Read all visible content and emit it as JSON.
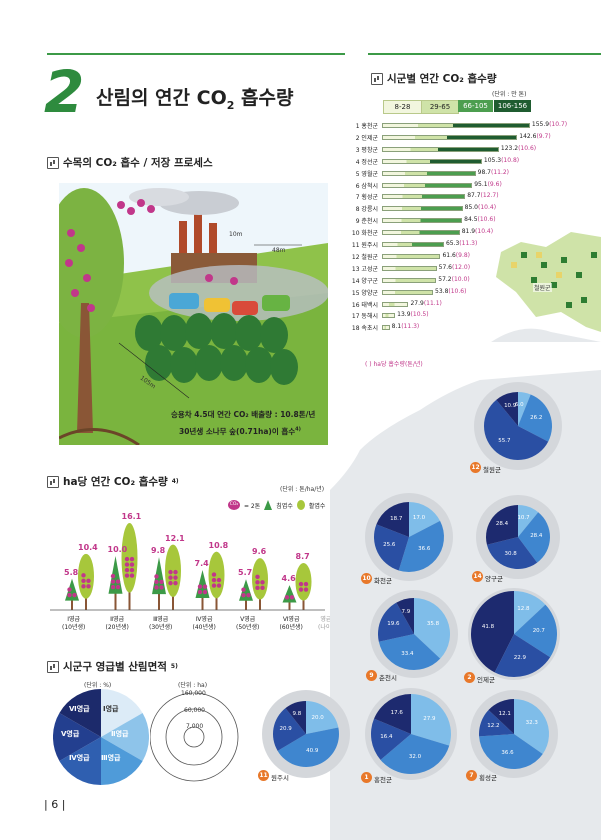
{
  "header": {
    "chapter_number": "2",
    "title": "산림의 연간 CO",
    "title_sub": "2",
    "title_tail": " 흡수량"
  },
  "process": {
    "title": "수목의 CO₂ 흡수 / 저장 프로세스",
    "tree_height": "10m",
    "area_width": "48m",
    "area_depth": "105m",
    "caption_1": "승용차 4.5대 연간 CO₂ 배출량 : 10.8톤/년",
    "caption_2": "30년생 소나무 숲(0.71ha)이 흡수",
    "caption_2_sup": "4)",
    "co2_mark": "CO₂"
  },
  "ha_chart": {
    "title": "ha당 연간 CO₂ 흡수량",
    "title_sup": "4)",
    "unit": "(단위 : 톤/ha/년)",
    "legend_co2": "= 2톤",
    "legend_conifer": "침엽수",
    "legend_broadleaf": "활엽수"
  },
  "chart_data": [
    {
      "type": "bar",
      "title": "ha당 연간 CO₂ 흡수량",
      "unit": "톤/ha/년",
      "categories": [
        "Ⅰ영급 (10년생)",
        "Ⅱ영급 (20년생)",
        "Ⅲ영급 (30년생)",
        "Ⅳ영급 (40년생)",
        "Ⅴ영급 (50년생)",
        "Ⅵ영급 (60년생)"
      ],
      "series": [
        {
          "name": "침엽수",
          "values": [
            5.8,
            10.0,
            9.8,
            7.4,
            5.7,
            4.6
          ]
        },
        {
          "name": "활엽수",
          "values": [
            10.4,
            16.1,
            12.1,
            10.8,
            9.6,
            8.7
          ]
        }
      ]
    },
    {
      "type": "bar",
      "title": "시군별 연간 CO₂ 흡수량",
      "unit": "만 톤",
      "categories": [
        "홍천군",
        "인제군",
        "평창군",
        "정선군",
        "영월군",
        "삼척시",
        "횡성군",
        "강릉시",
        "춘천시",
        "화천군",
        "원주시",
        "철원군",
        "고성군",
        "양구군",
        "양양군",
        "태백시",
        "동해시",
        "속초시"
      ],
      "values": [
        155.9,
        142.6,
        123.2,
        105.3,
        98.7,
        95.1,
        87.7,
        85.0,
        84.5,
        81.9,
        65.3,
        61.6,
        57.6,
        57.2,
        53.8,
        27.9,
        13.9,
        8.1
      ],
      "per_ha": [
        10.7,
        9.7,
        10.6,
        10.8,
        11.2,
        9.6,
        12.7,
        10.4,
        10.6,
        10.4,
        11.3,
        9.8,
        12.0,
        10.0,
        10.6,
        11.1,
        10.5,
        11.3
      ],
      "legend_bins": [
        "8-28",
        "29-65",
        "66-105",
        "106-156"
      ]
    },
    {
      "type": "pie",
      "title": "시군구 영급별 산림면적",
      "unit": "%",
      "pies": [
        {
          "name": "철원군",
          "number": "12",
          "values": [
            6.0,
            26.2,
            55.7,
            10.9
          ]
        },
        {
          "name": "화천군",
          "number": "10",
          "values": [
            17.0,
            36.6,
            25.6,
            18.7
          ]
        },
        {
          "name": "양구군",
          "number": "14",
          "values": [
            10.7,
            28.4,
            30.8,
            28.4
          ]
        },
        {
          "name": "춘천시",
          "number": "9",
          "values": [
            35.8,
            33.4,
            19.6,
            7.9
          ]
        },
        {
          "name": "인제군",
          "number": "2",
          "values": [
            12.8,
            20.7,
            22.9,
            41.8
          ]
        },
        {
          "name": "원주시",
          "number": "11",
          "values": [
            20.0,
            40.9,
            20.9,
            9.8
          ]
        },
        {
          "name": "홍천군",
          "number": "1",
          "values": [
            27.9,
            32.0,
            16.4,
            17.6
          ]
        },
        {
          "name": "횡성군",
          "number": "7",
          "values": [
            32.3,
            36.6,
            12.2,
            12.1
          ]
        }
      ]
    }
  ],
  "ha_bars": {
    "conifer": [
      "5.8",
      "10.0",
      "9.8",
      "7.4",
      "5.7",
      "4.6"
    ],
    "broadleaf": [
      "10.4",
      "16.1",
      "12.1",
      "10.8",
      "9.6",
      "8.7"
    ],
    "grades": [
      "Ⅰ영급",
      "Ⅱ영급",
      "Ⅲ영급",
      "Ⅳ영급",
      "Ⅴ영급",
      "Ⅵ영급"
    ],
    "ages": [
      "(10년생)",
      "(20년생)",
      "(30년생)",
      "(40년생)",
      "(50년생)",
      "(60년생)"
    ],
    "axis_label": "영급",
    "axis_sub": "(나이)"
  },
  "county_chart": {
    "title": "시군별 연간 CO₂ 흡수량",
    "unit": "(단위 : 만 톤)",
    "legend": [
      "8-28",
      "29-65",
      "66-105",
      "106-156"
    ],
    "legend_colors": [
      "#f2f6de",
      "#cfe3a8",
      "#4c9e4f",
      "#1f5c30"
    ],
    "rows": [
      {
        "rank": "1 홍천군",
        "value": "155.9",
        "per_ha": "(10.7)"
      },
      {
        "rank": "2 인제군",
        "value": "142.6",
        "per_ha": "(9.7)"
      },
      {
        "rank": "3 평창군",
        "value": "123.2",
        "per_ha": "(10.6)"
      },
      {
        "rank": "4 정선군",
        "value": "105.3",
        "per_ha": "(10.8)"
      },
      {
        "rank": "5 영월군",
        "value": "98.7",
        "per_ha": "(11.2)"
      },
      {
        "rank": "6 삼척시",
        "value": "95.1",
        "per_ha": "(9.6)"
      },
      {
        "rank": "7 횡성군",
        "value": "87.7",
        "per_ha": "(12.7)"
      },
      {
        "rank": "8 강릉시",
        "value": "85.0",
        "per_ha": "(10.4)"
      },
      {
        "rank": "9 춘천시",
        "value": "84.5",
        "per_ha": "(10.6)"
      },
      {
        "rank": "10 화천군",
        "value": "81.9",
        "per_ha": "(10.4)"
      },
      {
        "rank": "11 원주시",
        "value": "65.3",
        "per_ha": "(11.3)"
      },
      {
        "rank": "12 철원군",
        "value": "61.6",
        "per_ha": "(9.8)"
      },
      {
        "rank": "13 고성군",
        "value": "57.6",
        "per_ha": "(12.0)"
      },
      {
        "rank": "14 양구군",
        "value": "57.2",
        "per_ha": "(10.0)"
      },
      {
        "rank": "15 양양군",
        "value": "53.8",
        "per_ha": "(10.6)"
      },
      {
        "rank": "16 태백시",
        "value": "27.9",
        "per_ha": "(11.1)"
      },
      {
        "rank": "17 동해시",
        "value": "13.9",
        "per_ha": "(10.5)"
      },
      {
        "rank": "18 속초시",
        "value": "8.1",
        "per_ha": "(11.3)"
      }
    ],
    "footnote": "( ) ha당 흡수량(톤/년)"
  },
  "area_legend": {
    "title": "시군구 영급별 산림면적",
    "title_sup": "5)",
    "unit_pct": "(단위 : %)",
    "unit_ha": "(단위 : ha)",
    "grades": [
      "Ⅰ영급",
      "Ⅱ영급",
      "Ⅲ영급",
      "Ⅳ영급",
      "Ⅴ영급",
      "Ⅵ영급"
    ],
    "circle_values": [
      "160,000",
      "60,000",
      "7,000"
    ]
  },
  "map": {
    "label": "철원군"
  },
  "footer": {
    "page": "6"
  }
}
